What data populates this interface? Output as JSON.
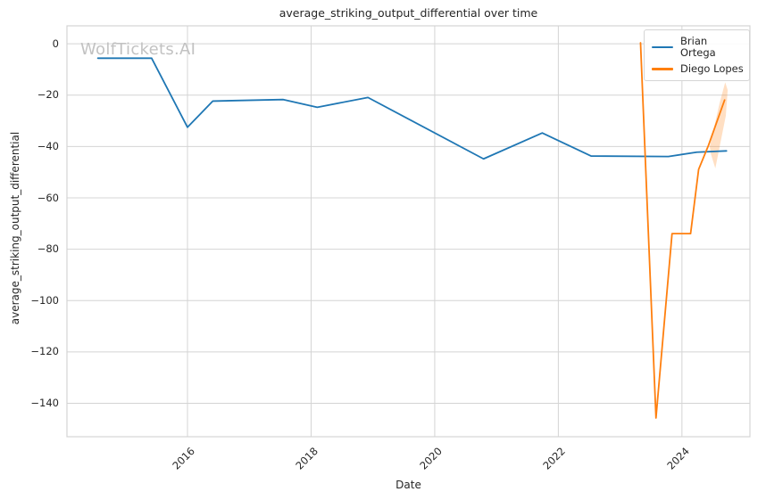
{
  "watermark": "WolfTickets.AI",
  "chart_data": {
    "type": "line",
    "title": "average_striking_output_differential over time",
    "xlabel": "Date",
    "ylabel": "average_striking_output_differential",
    "xlim": [
      2014.05,
      2025.1
    ],
    "ylim": [
      -153,
      7
    ],
    "x_ticks": [
      2016,
      2018,
      2020,
      2022,
      2024
    ],
    "x_tick_labels": [
      "2016",
      "2018",
      "2020",
      "2022",
      "2024"
    ],
    "y_ticks": [
      0,
      -20,
      -40,
      -60,
      -80,
      -100,
      -120,
      -140
    ],
    "y_tick_labels": [
      "0",
      "−20",
      "−40",
      "−60",
      "−80",
      "−100",
      "−120",
      "−140"
    ],
    "grid": true,
    "grid_color": "#d4d4d4",
    "background_color": "#ffffff",
    "legend_position": "upper-right",
    "series": [
      {
        "name": "Brian Ortega",
        "color": "#1f77b4",
        "points": [
          [
            2014.55,
            -5.6
          ],
          [
            2015.42,
            -5.6
          ],
          [
            2016.0,
            -32.5
          ],
          [
            2016.41,
            -22.3
          ],
          [
            2017.55,
            -21.7
          ],
          [
            2018.1,
            -24.7
          ],
          [
            2018.92,
            -20.9
          ],
          [
            2020.79,
            -44.8
          ],
          [
            2021.74,
            -34.7
          ],
          [
            2022.53,
            -43.7
          ],
          [
            2023.78,
            -43.9
          ],
          [
            2024.24,
            -42.2
          ],
          [
            2024.72,
            -41.7
          ]
        ]
      },
      {
        "name": "Diego Lopes",
        "color": "#ff7f0e",
        "points": [
          [
            2023.33,
            0.4
          ],
          [
            2023.58,
            -145.7
          ],
          [
            2023.84,
            -73.9
          ],
          [
            2024.14,
            -73.9
          ],
          [
            2024.27,
            -48.9
          ],
          [
            2024.43,
            -39.5
          ],
          [
            2024.69,
            -21.9
          ]
        ],
        "confidence_band": [
          [
            2024.45,
            -40
          ],
          [
            2024.61,
            -23
          ],
          [
            2024.7,
            -15
          ],
          [
            2024.74,
            -18
          ],
          [
            2024.71,
            -28
          ],
          [
            2024.54,
            -48.5
          ],
          [
            2024.47,
            -43
          ]
        ]
      }
    ]
  }
}
